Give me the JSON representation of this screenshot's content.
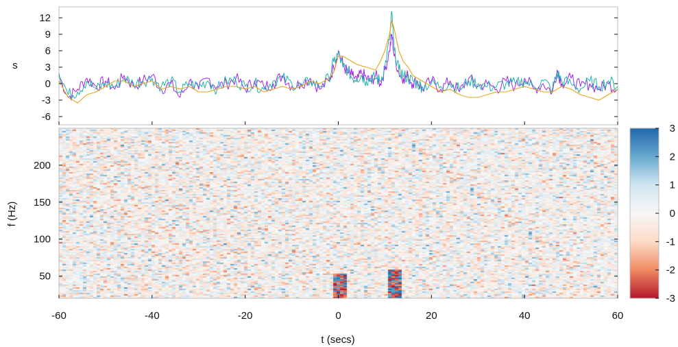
{
  "chart_data": [
    {
      "type": "line",
      "ylabel": "s",
      "xlim": [
        -60,
        60
      ],
      "ylim": [
        -7.5,
        14
      ],
      "yticks": [
        "-6",
        "-3",
        "0",
        "3",
        "6",
        "9",
        "12"
      ],
      "grid": false,
      "series": [
        {
          "color": "#a020f0",
          "x": [
            -60,
            -58,
            -56,
            -54,
            -52,
            -50,
            -48,
            -46,
            -44,
            -42,
            -40,
            -38,
            -36,
            -34,
            -32,
            -30,
            -28,
            -26,
            -24,
            -22,
            -20,
            -18,
            -16,
            -14,
            -12,
            -10,
            -8,
            -6,
            -4,
            -2,
            -1,
            0,
            1,
            2,
            3,
            4,
            5,
            6,
            7,
            8,
            9,
            10,
            11,
            11.5,
            12,
            13,
            14,
            15,
            16,
            17,
            18,
            20,
            22,
            24,
            26,
            28,
            30,
            32,
            34,
            36,
            38,
            40,
            42,
            44,
            46,
            47,
            48,
            50,
            52,
            54,
            56,
            58,
            60
          ],
          "y": [
            1.5,
            -2.5,
            -1,
            1,
            -0.5,
            0.5,
            -1,
            1.5,
            -0.5,
            0.5,
            1.5,
            -1,
            0,
            -2.5,
            0.5,
            -1,
            1,
            -0.5,
            0,
            1,
            -1,
            0.5,
            -0.5,
            0,
            1.5,
            -0.5,
            0,
            1,
            -1,
            0.5,
            3,
            6,
            3.5,
            2,
            1.5,
            0.5,
            2,
            1,
            0.5,
            1.5,
            0,
            2.5,
            6,
            9,
            5,
            2,
            1,
            1.5,
            0,
            0.5,
            -1,
            0.5,
            -1,
            0.5,
            -1.5,
            1,
            -0.5,
            0,
            -1,
            0.5,
            -0.5,
            1,
            -1,
            0,
            -1.5,
            2.5,
            0,
            1,
            -0.5,
            0,
            -1,
            0,
            -1
          ]
        },
        {
          "color": "#20b2aa",
          "x": [
            -60,
            -58,
            -56,
            -54,
            -52,
            -50,
            -48,
            -46,
            -44,
            -42,
            -40,
            -38,
            -36,
            -34,
            -32,
            -30,
            -28,
            -26,
            -24,
            -22,
            -20,
            -18,
            -16,
            -14,
            -12,
            -10,
            -8,
            -6,
            -4,
            -2,
            -1,
            0,
            1,
            2,
            3,
            4,
            5,
            6,
            7,
            8,
            9,
            10,
            11,
            11.5,
            12,
            13,
            14,
            15,
            16,
            17,
            18,
            20,
            22,
            24,
            26,
            28,
            30,
            32,
            34,
            36,
            38,
            40,
            42,
            44,
            46,
            47,
            48,
            50,
            52,
            54,
            56,
            58,
            60
          ],
          "y": [
            2,
            -2,
            -1.5,
            0.5,
            -1,
            0,
            -0.5,
            1,
            0,
            0.5,
            1,
            -0.5,
            0.5,
            -1.5,
            0,
            -0.5,
            0.5,
            -1,
            0.5,
            0.5,
            -0.5,
            0,
            -1,
            0.5,
            1,
            0,
            -0.5,
            0.5,
            -0.5,
            1,
            4,
            5.5,
            3,
            2.5,
            1,
            1,
            1.5,
            0.5,
            1,
            1,
            0.5,
            3,
            8,
            13,
            6,
            2.5,
            1.5,
            1,
            0.5,
            0,
            -0.5,
            0,
            -0.5,
            0,
            -1,
            0.5,
            0,
            -0.5,
            -0.5,
            0,
            0,
            0.5,
            -0.5,
            0.5,
            -1,
            2,
            0.5,
            0,
            -1,
            0.5,
            -0.5,
            0.5,
            -0.5
          ]
        },
        {
          "color": "#e8a317",
          "x": [
            -60,
            -58,
            -56,
            -54,
            -52,
            -50,
            -48,
            -46,
            -44,
            -42,
            -40,
            -38,
            -36,
            -34,
            -32,
            -30,
            -28,
            -26,
            -24,
            -22,
            -20,
            -18,
            -16,
            -14,
            -12,
            -10,
            -8,
            -6,
            -4,
            -2,
            -1,
            0,
            1,
            2,
            4,
            6,
            8,
            9,
            10,
            11,
            11.5,
            12,
            13,
            14,
            15,
            16,
            18,
            20,
            22,
            24,
            26,
            28,
            30,
            32,
            34,
            36,
            38,
            40,
            42,
            44,
            46,
            48,
            50,
            52,
            54,
            56,
            58,
            60
          ],
          "y": [
            0.5,
            -2.5,
            -3.5,
            -2,
            -1.5,
            -0.5,
            0.5,
            0.5,
            -0.5,
            0,
            0.5,
            -1,
            -0.5,
            -1,
            -0.5,
            -1.5,
            -1.5,
            -1,
            -0.5,
            -0.5,
            -1,
            -0.5,
            -1.5,
            -1,
            -0.5,
            -1,
            -0.5,
            0.5,
            0,
            1,
            2,
            5,
            5,
            4.5,
            3.5,
            3,
            2.5,
            4,
            6,
            9,
            11.5,
            10,
            6,
            4,
            3,
            1.5,
            0.5,
            -0.5,
            -1.5,
            -1,
            -2,
            -2.5,
            -2.5,
            -2,
            -1.5,
            -1.5,
            -1,
            -0.5,
            -1,
            -1.5,
            -1.5,
            -0.5,
            -1,
            -2,
            -2.5,
            -3,
            -2,
            -1
          ]
        }
      ]
    },
    {
      "type": "heatmap",
      "xlabel": "t (secs)",
      "ylabel": "f (Hz)",
      "xlim": [
        -60,
        60
      ],
      "ylim": [
        20,
        250
      ],
      "xticks": [
        "-60",
        "-40",
        "-20",
        "0",
        "20",
        "40",
        "60"
      ],
      "yticks": [
        "50",
        "100",
        "150",
        "200"
      ],
      "colorbar": {
        "range": [
          -3,
          3
        ],
        "ticks": [
          "-3",
          "-2",
          "-1",
          "0",
          "1",
          "2",
          "3"
        ],
        "colors": [
          "#b2182b",
          "#ef8a62",
          "#fddbc7",
          "#f7f7f7",
          "#d1e5f0",
          "#67a9cf",
          "#2166ac"
        ]
      },
      "features": [
        {
          "t": 0,
          "f_low": 20,
          "f_high": 55,
          "intensity": 3
        },
        {
          "t": 11.5,
          "f_low": 20,
          "f_high": 60,
          "intensity": 3
        }
      ]
    }
  ]
}
